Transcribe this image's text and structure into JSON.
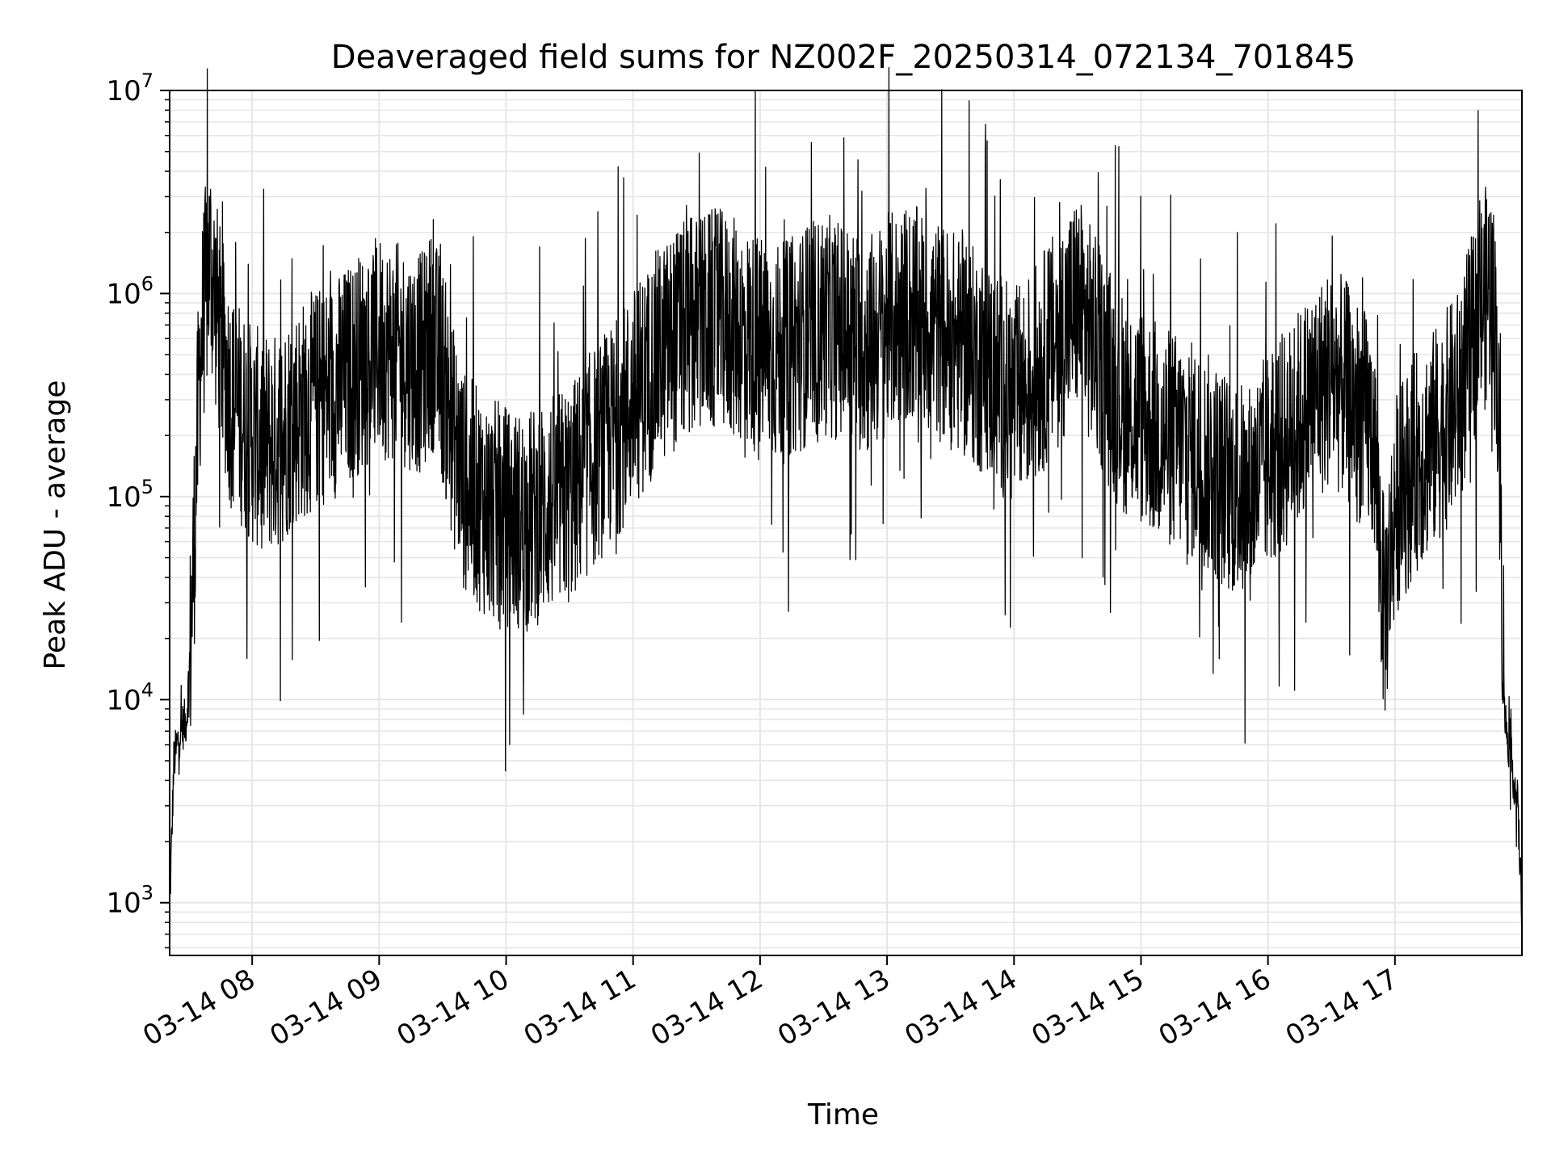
{
  "chart_data": {
    "type": "line",
    "title": "Deaveraged field sums for NZ002F_20250314_072134_701845",
    "xlabel": "Time",
    "ylabel": "Peak ADU - average",
    "y_scale": "log",
    "grid": true,
    "legend": "none",
    "colors": {
      "line": "#000000",
      "grid": "#e6e6e6",
      "axes": "#000000",
      "background": "#ffffff"
    },
    "xlim": [
      "2025-03-14 07:21",
      "2025-03-14 18:00"
    ],
    "ylim": [
      550,
      10000000
    ],
    "x_ticks": [
      {
        "value": "2025-03-14 08:00",
        "label": "03-14 08"
      },
      {
        "value": "2025-03-14 09:00",
        "label": "03-14 09"
      },
      {
        "value": "2025-03-14 10:00",
        "label": "03-14 10"
      },
      {
        "value": "2025-03-14 11:00",
        "label": "03-14 11"
      },
      {
        "value": "2025-03-14 12:00",
        "label": "03-14 12"
      },
      {
        "value": "2025-03-14 13:00",
        "label": "03-14 13"
      },
      {
        "value": "2025-03-14 14:00",
        "label": "03-14 14"
      },
      {
        "value": "2025-03-14 15:00",
        "label": "03-14 15"
      },
      {
        "value": "2025-03-14 16:00",
        "label": "03-14 16"
      },
      {
        "value": "2025-03-14 17:00",
        "label": "03-14 17"
      }
    ],
    "y_ticks": [
      {
        "value": 1000,
        "base": "10",
        "exp": "3"
      },
      {
        "value": 10000,
        "base": "10",
        "exp": "4"
      },
      {
        "value": 100000,
        "base": "10",
        "exp": "5"
      },
      {
        "value": 1000000,
        "base": "10",
        "exp": "6"
      },
      {
        "value": 10000000,
        "base": "10",
        "exp": "7"
      }
    ],
    "series": [
      {
        "x": [
          "2025-03-14 07:21",
          "2025-03-14 07:23",
          "2025-03-14 07:26",
          "2025-03-14 07:29",
          "2025-03-14 07:31",
          "2025-03-14 07:33",
          "2025-03-14 07:35",
          "2025-03-14 07:37",
          "2025-03-14 07:40",
          "2025-03-14 07:45",
          "2025-03-14 07:50",
          "2025-03-14 07:55",
          "2025-03-14 08:00",
          "2025-03-14 08:10",
          "2025-03-14 08:20",
          "2025-03-14 08:30",
          "2025-03-14 08:40",
          "2025-03-14 08:50",
          "2025-03-14 09:00",
          "2025-03-14 09:10",
          "2025-03-14 09:20",
          "2025-03-14 09:25",
          "2025-03-14 09:30",
          "2025-03-14 09:35",
          "2025-03-14 09:40",
          "2025-03-14 09:50",
          "2025-03-14 10:00",
          "2025-03-14 10:10",
          "2025-03-14 10:20",
          "2025-03-14 10:30",
          "2025-03-14 10:40",
          "2025-03-14 10:50",
          "2025-03-14 11:00",
          "2025-03-14 11:10",
          "2025-03-14 11:20",
          "2025-03-14 11:30",
          "2025-03-14 11:40",
          "2025-03-14 11:50",
          "2025-03-14 12:00",
          "2025-03-14 12:10",
          "2025-03-14 12:20",
          "2025-03-14 12:30",
          "2025-03-14 12:40",
          "2025-03-14 12:50",
          "2025-03-14 13:00",
          "2025-03-14 13:10",
          "2025-03-14 13:20",
          "2025-03-14 13:30",
          "2025-03-14 13:40",
          "2025-03-14 13:50",
          "2025-03-14 14:00",
          "2025-03-14 14:10",
          "2025-03-14 14:20",
          "2025-03-14 14:30",
          "2025-03-14 14:40",
          "2025-03-14 14:50",
          "2025-03-14 15:00",
          "2025-03-14 15:10",
          "2025-03-14 15:20",
          "2025-03-14 15:30",
          "2025-03-14 15:40",
          "2025-03-14 15:50",
          "2025-03-14 16:00",
          "2025-03-14 16:10",
          "2025-03-14 16:20",
          "2025-03-14 16:30",
          "2025-03-14 16:40",
          "2025-03-14 16:50",
          "2025-03-14 16:55",
          "2025-03-14 17:00",
          "2025-03-14 17:10",
          "2025-03-14 17:20",
          "2025-03-14 17:30",
          "2025-03-14 17:35",
          "2025-03-14 17:40",
          "2025-03-14 17:45",
          "2025-03-14 17:48",
          "2025-03-14 17:52",
          "2025-03-14 17:55",
          "2025-03-14 17:58",
          "2025-03-14 18:00"
        ],
        "y": [
          900,
          5000,
          7000,
          8000,
          20000,
          80000,
          400000,
          800000,
          1500000,
          600000,
          300000,
          250000,
          200000,
          180000,
          250000,
          300000,
          350000,
          450000,
          550000,
          500000,
          450000,
          600000,
          400000,
          200000,
          120000,
          90000,
          80000,
          75000,
          90000,
          100000,
          150000,
          200000,
          300000,
          450000,
          600000,
          700000,
          750000,
          650000,
          550000,
          500000,
          600000,
          700000,
          650000,
          550000,
          700000,
          800000,
          700000,
          600000,
          500000,
          400000,
          300000,
          400000,
          600000,
          900000,
          500000,
          300000,
          250000,
          200000,
          180000,
          150000,
          120000,
          100000,
          150000,
          200000,
          300000,
          400000,
          300000,
          200000,
          25000,
          90000,
          150000,
          200000,
          300000,
          500000,
          800000,
          1100000,
          600000,
          8000,
          5000,
          3000,
          900
        ],
        "noise_amplitude_decades": 0.55
      }
    ]
  }
}
